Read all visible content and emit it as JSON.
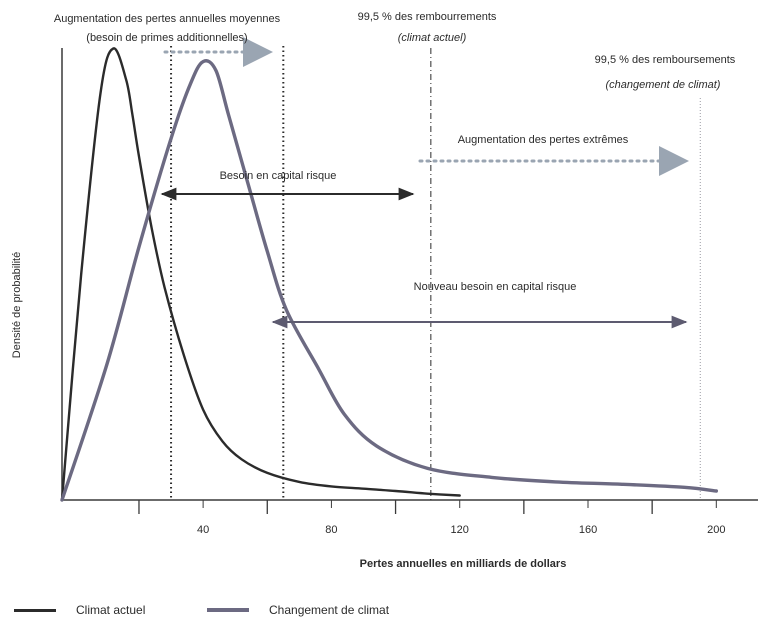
{
  "chart_data": {
    "type": "line",
    "xlabel": "Pertes annuelles en milliards de dollars",
    "ylabel": "Densité de probabilité",
    "xlim": [
      -4,
      213
    ],
    "ylim": [
      0,
      1.0
    ],
    "x_ticks": [
      40,
      80,
      120,
      160,
      200
    ],
    "minor_ticks": [
      20,
      60,
      100,
      140,
      180
    ],
    "grid": false,
    "legend_position": "bottom-left",
    "series": [
      {
        "name": "Climat actuel",
        "color": "#2b2b2b",
        "x": [
          -4,
          2,
          8,
          12,
          16,
          18,
          20,
          24,
          28,
          34,
          40,
          46,
          52,
          60,
          70,
          80,
          90,
          100,
          110,
          120
        ],
        "y": [
          0.0,
          0.5,
          0.9,
          0.999,
          0.93,
          0.85,
          0.76,
          0.6,
          0.47,
          0.32,
          0.2,
          0.13,
          0.09,
          0.06,
          0.04,
          0.03,
          0.025,
          0.02,
          0.014,
          0.01
        ]
      },
      {
        "name": "Changement de climat",
        "color": "#6c6a82",
        "x": [
          -4,
          10,
          20,
          30,
          36,
          40,
          44,
          48,
          54,
          60,
          66,
          76,
          84,
          94,
          110,
          130,
          150,
          170,
          190,
          200
        ],
        "y": [
          0.0,
          0.3,
          0.56,
          0.8,
          0.92,
          0.97,
          0.95,
          0.85,
          0.7,
          0.55,
          0.42,
          0.29,
          0.19,
          0.12,
          0.07,
          0.05,
          0.04,
          0.035,
          0.028,
          0.02
        ]
      }
    ],
    "reference_lines": [
      {
        "x": 30,
        "style": "dotted"
      },
      {
        "x": 65,
        "style": "dotted"
      },
      {
        "x": 111,
        "style": "dashdot"
      },
      {
        "x": 195,
        "style": "dotted-light"
      }
    ],
    "annotations": {
      "mean_loss_increase": [
        "Augmentation des pertes annuelles moyennes",
        "(besoin de primes additionnelles)"
      ],
      "quantile_current": [
        "99,5 % des rembourrements",
        "(climat actuel)"
      ],
      "quantile_change": [
        "99,5 % des remboursements",
        "(changement de climat)"
      ],
      "extreme_loss_increase": "Augmentation des pertes extrêmes",
      "capital_need": "Besoin en capital risque",
      "new_capital_need": "Nouveau besoin en capital risque"
    }
  }
}
